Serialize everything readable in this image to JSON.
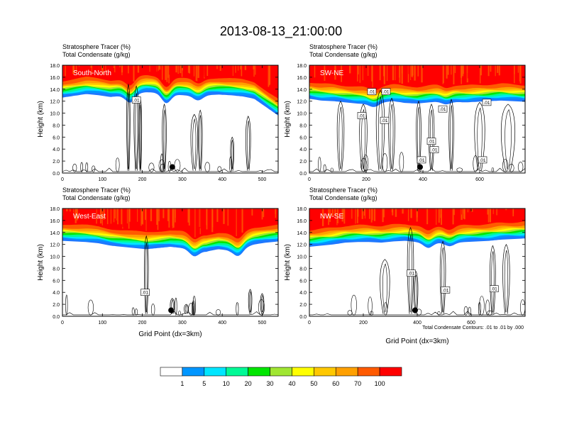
{
  "title": "2013-08-13_21:00:00",
  "colors": {
    "bands": [
      "#ffffff",
      "#1e78ff",
      "#0096ff",
      "#00e6ff",
      "#00fa96",
      "#00e600",
      "#a0e632",
      "#ffff00",
      "#ffc800",
      "#ffa000",
      "#ff5a00",
      "#ff0000"
    ],
    "contour": "#000000",
    "frame": "#000000"
  },
  "footnote": "Total Condensate Contours: .01 to .01 by .000",
  "colorbar": {
    "labels": [
      "1",
      "5",
      "10",
      "20",
      "30",
      "40",
      "50",
      "60",
      "70",
      "100"
    ]
  },
  "contour_label": ".01",
  "chart_data": [
    {
      "type": "heatmap",
      "panel": "South-North",
      "title_lines": [
        "Stratosphere Tracer   (%)",
        "Total Condensate   (g/kg)"
      ],
      "ylabel": "Height (km)",
      "xlabel": "",
      "xlim": [
        0,
        540
      ],
      "ylim": [
        0,
        18
      ],
      "xticks": [
        0,
        100,
        200,
        300,
        400,
        500
      ],
      "xtick_labels": [
        "0",
        "100",
        "200",
        "300",
        "400",
        "500"
      ],
      "yticks": [
        "0.0",
        "2.0",
        "4.0",
        "6.0",
        "8.0",
        "10.0",
        "12.0",
        "14.0",
        "16.0",
        "18.0"
      ],
      "tracer_base_km": [
        12.6,
        12.9,
        13.2,
        13.0,
        12.7,
        12.9,
        13.3,
        13.5,
        13.4,
        13.2,
        13.0,
        12.9,
        13.0,
        13.1,
        13.0,
        12.8,
        12.4,
        11.0,
        9.6
      ],
      "blue_dip": [
        {
          "x": 170,
          "depth": 1.4
        },
        {
          "x": 260,
          "depth": 1.6
        },
        {
          "x": 340,
          "depth": 0.8
        }
      ],
      "clouds": [
        {
          "x": 165,
          "top": 14.8,
          "w": 10
        },
        {
          "x": 185,
          "top": 14.5,
          "w": 14
        },
        {
          "x": 195,
          "top": 12.5,
          "w": 8
        },
        {
          "x": 255,
          "top": 11.5,
          "w": 12
        },
        {
          "x": 330,
          "top": 9.8,
          "w": 20
        },
        {
          "x": 345,
          "top": 10.5,
          "w": 12
        },
        {
          "x": 425,
          "top": 6.0,
          "w": 10
        },
        {
          "x": 465,
          "top": 9.5,
          "w": 14
        }
      ],
      "contour_labels": [
        {
          "x": 185,
          "y": 12.2
        }
      ],
      "marker": {
        "x": 275,
        "y": 1.0
      }
    },
    {
      "type": "heatmap",
      "panel": "SW-NE",
      "title_lines": [
        "Stratosphere Tracer   (%)",
        "Total Condensate   (g/kg)"
      ],
      "ylabel": "Height (km)",
      "xlabel": "",
      "xlim": [
        0,
        760
      ],
      "ylim": [
        0,
        18
      ],
      "xticks": [
        0,
        200,
        400,
        600
      ],
      "xtick_labels": [
        "0",
        "200",
        "400",
        "600"
      ],
      "yticks": [
        "0.0",
        "2.0",
        "4.0",
        "6.0",
        "8.0",
        "10.0",
        "12.0",
        "14.0",
        "16.0",
        "18.0"
      ],
      "tracer_base_km": [
        12.4,
        12.1,
        12.0,
        11.8,
        11.6,
        11.5,
        11.8,
        12.0,
        11.7,
        11.6,
        11.8,
        12.0,
        11.9,
        11.8,
        11.9,
        12.0,
        12.1,
        12.0,
        11.9
      ],
      "blue_dip": [
        {
          "x": 230,
          "depth": 0.6
        },
        {
          "x": 480,
          "depth": 0.5
        }
      ],
      "clouds": [
        {
          "x": 110,
          "top": 12.0,
          "w": 20
        },
        {
          "x": 190,
          "top": 11.5,
          "w": 22
        },
        {
          "x": 250,
          "top": 13.8,
          "w": 24
        },
        {
          "x": 290,
          "top": 12.5,
          "w": 18
        },
        {
          "x": 385,
          "top": 12.0,
          "w": 14
        },
        {
          "x": 430,
          "top": 11.5,
          "w": 16
        },
        {
          "x": 500,
          "top": 12.3,
          "w": 14
        },
        {
          "x": 600,
          "top": 11.8,
          "w": 30
        },
        {
          "x": 700,
          "top": 11.5,
          "w": 40
        }
      ],
      "contour_labels": [
        {
          "x": 220,
          "y": 13.6
        },
        {
          "x": 270,
          "y": 13.6
        },
        {
          "x": 185,
          "y": 9.6
        },
        {
          "x": 265,
          "y": 8.8
        },
        {
          "x": 470,
          "y": 10.7
        },
        {
          "x": 625,
          "y": 11.8
        },
        {
          "x": 430,
          "y": 5.3
        },
        {
          "x": 440,
          "y": 3.9
        },
        {
          "x": 395,
          "y": 2.2
        },
        {
          "x": 610,
          "y": 2.2
        }
      ],
      "marker": {
        "x": 390,
        "y": 1.0
      }
    },
    {
      "type": "heatmap",
      "panel": "West-East",
      "title_lines": [
        "Stratosphere Tracer   (%)",
        "Total Condensate   (g/kg)"
      ],
      "ylabel": "Height (km)",
      "xlabel": "Grid Point (dx=3km)",
      "xlim": [
        0,
        540
      ],
      "ylim": [
        0,
        18
      ],
      "xticks": [
        0,
        100,
        200,
        300,
        400,
        500
      ],
      "xtick_labels": [
        "0",
        "100",
        "200",
        "300",
        "400",
        "500"
      ],
      "yticks": [
        "0.0",
        "2.0",
        "4.0",
        "6.0",
        "8.0",
        "10.0",
        "12.0",
        "14.0",
        "16.0",
        "18.0"
      ],
      "tracer_base_km": [
        12.6,
        12.5,
        12.4,
        12.2,
        11.8,
        11.6,
        11.4,
        11.2,
        11.4,
        11.6,
        11.4,
        11.0,
        10.8,
        11.2,
        11.0,
        11.4,
        12.0,
        12.3,
        12.5
      ],
      "blue_dip": [
        {
          "x": 330,
          "depth": 1.0
        },
        {
          "x": 440,
          "depth": 1.2
        }
      ],
      "clouds": [
        {
          "x": 210,
          "top": 13.4,
          "w": 12
        },
        {
          "x": 275,
          "top": 3.0,
          "w": 12
        },
        {
          "x": 310,
          "top": 2.0,
          "w": 12
        },
        {
          "x": 470,
          "top": 4.5,
          "w": 10
        },
        {
          "x": 500,
          "top": 3.8,
          "w": 10
        }
      ],
      "contour_labels": [
        {
          "x": 207,
          "y": 4.0
        }
      ],
      "marker": {
        "x": 272,
        "y": 1.0
      }
    },
    {
      "type": "heatmap",
      "panel": "NW-SE",
      "title_lines": [
        "Stratosphere Tracer   (%)",
        "Total Condensate   (g/kg)"
      ],
      "ylabel": "Height (km)",
      "xlabel": "Grid Point (dx=3km)",
      "xlim": [
        0,
        800
      ],
      "ylim": [
        0,
        18
      ],
      "xticks": [
        0,
        200,
        400,
        600
      ],
      "xtick_labels": [
        "0",
        "200",
        "400",
        "600"
      ],
      "yticks": [
        "0.0",
        "2.0",
        "4.0",
        "6.0",
        "8.0",
        "10.0",
        "12.0",
        "14.0",
        "16.0",
        "18.0"
      ],
      "tracer_base_km": [
        11.6,
        11.8,
        12.0,
        12.3,
        12.4,
        12.4,
        12.3,
        12.5,
        12.6,
        12.4,
        12.2,
        12.3,
        12.3,
        12.4,
        12.5,
        12.6,
        12.8,
        12.9,
        13.0
      ],
      "blue_dip": [
        {
          "x": 440,
          "depth": 0.8
        },
        {
          "x": 520,
          "depth": 0.6
        }
      ],
      "clouds": [
        {
          "x": 280,
          "top": 9.5,
          "w": 28
        },
        {
          "x": 375,
          "top": 14.8,
          "w": 18
        },
        {
          "x": 395,
          "top": 7.5,
          "w": 12
        },
        {
          "x": 495,
          "top": 12.5,
          "w": 16
        },
        {
          "x": 680,
          "top": 11.8,
          "w": 16
        },
        {
          "x": 730,
          "top": 12.0,
          "w": 20
        }
      ],
      "contour_labels": [
        {
          "x": 378,
          "y": 7.2
        },
        {
          "x": 505,
          "y": 4.4
        },
        {
          "x": 685,
          "y": 4.6
        }
      ],
      "marker": {
        "x": 392,
        "y": 1.0
      }
    }
  ]
}
